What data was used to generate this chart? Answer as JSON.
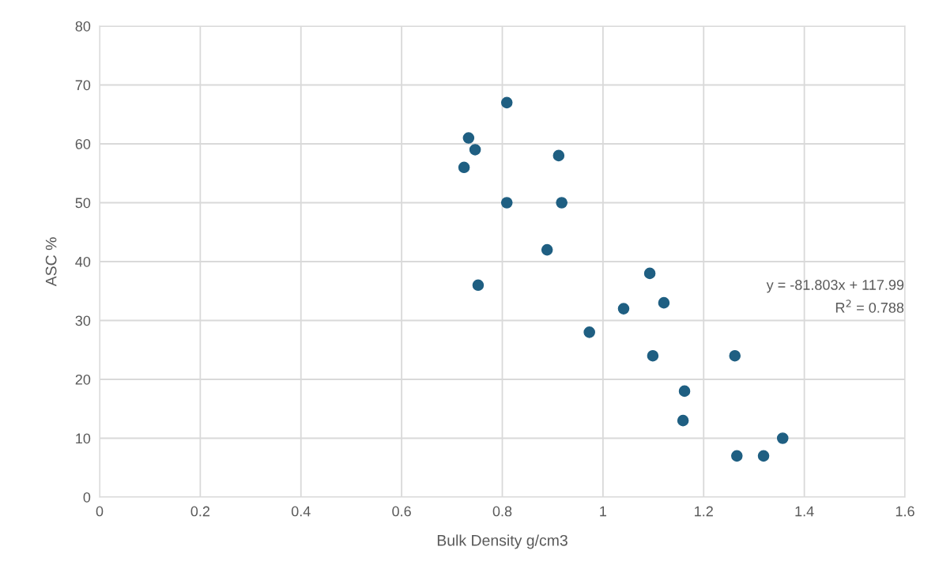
{
  "chart_data": {
    "type": "scatter",
    "xlabel": "Bulk Density g/cm3",
    "ylabel": "ASC %",
    "x": [
      0.809,
      0.733,
      0.746,
      0.724,
      0.912,
      0.809,
      0.918,
      0.889,
      0.752,
      1.093,
      1.041,
      1.121,
      0.973,
      1.099,
      1.262,
      1.162,
      1.159,
      1.266,
      1.319,
      1.357
    ],
    "series": [
      {
        "color": "#1f5f82",
        "values": [
          67,
          61,
          59,
          56,
          58,
          50,
          50,
          42,
          36,
          38,
          32,
          33,
          28,
          24,
          24,
          18,
          13,
          7,
          7,
          10
        ]
      }
    ],
    "xlim": [
      0,
      1.6
    ],
    "xticks": [
      0,
      0.2,
      0.4,
      0.6,
      0.8,
      1,
      1.2,
      1.4,
      1.6
    ],
    "ylim": [
      0,
      80
    ],
    "yticks": [
      0,
      10,
      20,
      30,
      40,
      50,
      60,
      70,
      80
    ],
    "grid": true,
    "marker": "circle",
    "annotations": [
      "y = -81.803x + 117.99",
      "R$^{2}$ = 0.788"
    ]
  }
}
